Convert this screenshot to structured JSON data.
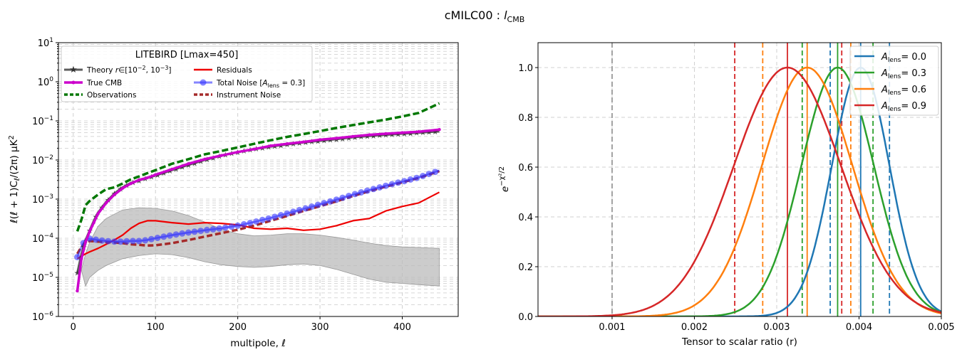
{
  "figure": {
    "suptitle": "cMILC00 : ",
    "suptitle_sub": "CMB"
  },
  "chart_data": [
    {
      "type": "line",
      "yscale": "log",
      "xlim": [
        -18,
        468
      ],
      "ylim": [
        1e-06,
        10
      ],
      "grid": true,
      "xlabel": "multipole, ",
      "ylabel": "ℓ(ℓ+1)C_ℓ/(2π)  μK²",
      "xticks": [
        0,
        100,
        200,
        300,
        400
      ],
      "yticks_exp": [
        -6,
        -5,
        -4,
        -3,
        -2,
        -1,
        0,
        1
      ],
      "legend": {
        "placement": "top-left",
        "title": "LITEBIRD [Lmax=450]",
        "entries": [
          {
            "key": "theory",
            "label": "Theory r∈[10⁻², 10⁻³]"
          },
          {
            "key": "true",
            "label": "True CMB"
          },
          {
            "key": "obs",
            "label": "Observations"
          },
          {
            "key": "resid",
            "label": "Residuals"
          },
          {
            "key": "totnoise",
            "label": "Total Noise [A_lens=0.3]"
          },
          {
            "key": "instr",
            "label": "Instrument Noise"
          }
        ]
      },
      "colors": {
        "theory": "#333333",
        "true": "#cc00cc",
        "obs": "#007700",
        "resid": "#ee0000",
        "totnoise": "#3333ff",
        "instr": "#a52a2a",
        "band": "#bbbbbb"
      },
      "series": {
        "theory": {
          "x": [
            5,
            10,
            15,
            20,
            25,
            30,
            40,
            50,
            60,
            70,
            80,
            90,
            100,
            120,
            140,
            160,
            180,
            200,
            220,
            240,
            260,
            280,
            300,
            320,
            340,
            360,
            380,
            400,
            420,
            445
          ],
          "y": [
            1.3e-05,
            4e-05,
            9e-05,
            0.00016,
            0.00028,
            0.00045,
            0.00085,
            0.0014,
            0.002,
            0.0026,
            0.003,
            0.0035,
            0.004,
            0.0055,
            0.0075,
            0.01,
            0.013,
            0.016,
            0.019,
            0.022,
            0.025,
            0.028,
            0.031,
            0.034,
            0.038,
            0.041,
            0.044,
            0.047,
            0.05,
            0.054
          ]
        },
        "true": {
          "x": [
            5,
            10,
            15,
            20,
            25,
            30,
            40,
            50,
            60,
            70,
            80,
            90,
            100,
            120,
            140,
            160,
            180,
            200,
            220,
            240,
            260,
            280,
            300,
            320,
            340,
            360,
            380,
            400,
            420,
            445
          ],
          "y": [
            4.5e-06,
            3e-05,
            8e-05,
            0.00015,
            0.00025,
            0.00042,
            0.0008,
            0.0013,
            0.0019,
            0.0025,
            0.0031,
            0.0035,
            0.0042,
            0.0058,
            0.008,
            0.0105,
            0.013,
            0.016,
            0.019,
            0.023,
            0.026,
            0.029,
            0.033,
            0.036,
            0.04,
            0.044,
            0.047,
            0.05,
            0.053,
            0.06
          ]
        },
        "obs": {
          "x": [
            5,
            10,
            15,
            20,
            30,
            40,
            50,
            60,
            70,
            80,
            90,
            100,
            120,
            140,
            160,
            180,
            200,
            220,
            240,
            260,
            280,
            300,
            320,
            340,
            360,
            380,
            400,
            420,
            445
          ],
          "y": [
            0.00015,
            0.0003,
            0.0007,
            0.0009,
            0.0013,
            0.0018,
            0.002,
            0.0025,
            0.0032,
            0.0038,
            0.0046,
            0.0055,
            0.008,
            0.0105,
            0.014,
            0.017,
            0.021,
            0.026,
            0.032,
            0.039,
            0.046,
            0.055,
            0.066,
            0.078,
            0.092,
            0.108,
            0.13,
            0.16,
            0.28
          ]
        },
        "resid": {
          "x": [
            5,
            10,
            15,
            20,
            30,
            40,
            50,
            60,
            70,
            80,
            90,
            100,
            120,
            140,
            160,
            180,
            200,
            220,
            240,
            260,
            280,
            300,
            320,
            340,
            360,
            380,
            400,
            420,
            445
          ],
          "y": [
            3e-05,
            3.5e-05,
            4e-05,
            4.5e-05,
            5.5e-05,
            7e-05,
            9e-05,
            0.00012,
            0.00018,
            0.00024,
            0.00028,
            0.00028,
            0.00025,
            0.00023,
            0.00025,
            0.00024,
            0.00022,
            0.00018,
            0.00017,
            0.00018,
            0.00016,
            0.00017,
            0.00021,
            0.00028,
            0.00032,
            0.0005,
            0.00065,
            0.0008,
            0.0015
          ]
        },
        "totnoise": {
          "x": [
            5,
            10,
            15,
            20,
            30,
            40,
            50,
            60,
            70,
            80,
            90,
            100,
            120,
            140,
            160,
            180,
            200,
            220,
            240,
            260,
            280,
            300,
            320,
            340,
            360,
            380,
            400,
            420,
            445
          ],
          "y": [
            3.3e-05,
            6e-05,
            9.5e-05,
            9.8e-05,
            9e-05,
            8.5e-05,
            8.2e-05,
            8.2e-05,
            8.5e-05,
            8.5e-05,
            9e-05,
            0.0001,
            0.00012,
            0.00014,
            0.00016,
            0.00018,
            0.00021,
            0.00026,
            0.00033,
            0.00043,
            0.00056,
            0.00074,
            0.00097,
            0.0013,
            0.0017,
            0.0022,
            0.0028,
            0.0036,
            0.0054
          ]
        },
        "instr": {
          "x": [
            5,
            10,
            15,
            20,
            30,
            40,
            50,
            60,
            70,
            80,
            90,
            100,
            120,
            140,
            160,
            180,
            200,
            220,
            240,
            260,
            280,
            300,
            320,
            340,
            360,
            380,
            400,
            420,
            445
          ],
          "y": [
            4e-05,
            6e-05,
            8e-05,
            8.5e-05,
            8.2e-05,
            8e-05,
            7.8e-05,
            7.5e-05,
            7e-05,
            6.8e-05,
            6.5e-05,
            6.6e-05,
            7.5e-05,
            9e-05,
            0.00011,
            0.000135,
            0.000165,
            0.00021,
            0.00028,
            0.00037,
            0.0005,
            0.00066,
            0.00088,
            0.0012,
            0.0016,
            0.0021,
            0.0027,
            0.0035,
            0.0052
          ]
        },
        "band_upper": {
          "x": [
            10,
            15,
            20,
            30,
            40,
            60,
            80,
            100,
            120,
            140,
            160,
            180,
            200,
            220,
            240,
            260,
            280,
            300,
            320,
            340,
            360,
            380,
            400,
            420,
            445
          ],
          "y": [
            1.6e-05,
            4e-05,
            8e-05,
            0.0002,
            0.00032,
            0.00053,
            0.0006,
            0.00058,
            0.0005,
            0.00038,
            0.00026,
            0.00017,
            0.00013,
            0.000115,
            0.00012,
            0.00013,
            0.00013,
            0.00012,
            0.000105,
            9e-05,
            7.5e-05,
            6.5e-05,
            6e-05,
            5.8e-05,
            5.5e-05
          ]
        },
        "band_lower": {
          "x": [
            10,
            15,
            20,
            30,
            40,
            60,
            80,
            100,
            120,
            140,
            160,
            180,
            200,
            220,
            240,
            260,
            280,
            300,
            320,
            340,
            360,
            380,
            400,
            420,
            445
          ],
          "y": [
            1.5e-05,
            6e-06,
            1e-05,
            1.5e-05,
            2e-05,
            3e-05,
            3.6e-05,
            4e-05,
            3.8e-05,
            3.2e-05,
            2.5e-05,
            2.1e-05,
            1.9e-05,
            1.8e-05,
            1.9e-05,
            2.1e-05,
            2.2e-05,
            2e-05,
            1.6e-05,
            1.2e-05,
            9e-06,
            7.5e-06,
            7e-06,
            6.5e-06,
            6e-06
          ]
        }
      }
    },
    {
      "type": "line",
      "xlim": [
        0.0001,
        0.005
      ],
      "ylim": [
        0,
        1.1
      ],
      "grid": true,
      "xlabel": "Tensor to scalar ratio (r)",
      "ylabel": "e^{-χ²/2}",
      "xticks": [
        0.001,
        0.002,
        0.003,
        0.004,
        0.005
      ],
      "yticks": [
        0.0,
        0.2,
        0.4,
        0.6,
        0.8,
        1.0
      ],
      "legend": {
        "placement": "top-right"
      },
      "reference_line": {
        "x": 0.001,
        "color": "#999999"
      },
      "series": [
        {
          "name": "A_lens = 0.0",
          "label_value": "= 0.0",
          "color": "#1f77b4",
          "mu": 0.00402,
          "sigma": 0.00035,
          "bounds": [
            0.00365,
            0.00437
          ]
        },
        {
          "name": "A_lens = 0.3",
          "label_value": "= 0.3",
          "color": "#2ca02c",
          "mu": 0.00374,
          "sigma": 0.00044,
          "bounds": [
            0.00331,
            0.00417
          ]
        },
        {
          "name": "A_lens = 0.6",
          "label_value": "= 0.6",
          "color": "#ff7f0e",
          "mu": 0.00337,
          "sigma": 0.00055,
          "bounds": [
            0.00283,
            0.0039
          ]
        },
        {
          "name": "A_lens = 0.9",
          "label_value": "= 0.9",
          "color": "#d62728",
          "mu": 0.00313,
          "sigma": 0.00065,
          "bounds": [
            0.00249,
            0.00379
          ]
        }
      ]
    }
  ]
}
